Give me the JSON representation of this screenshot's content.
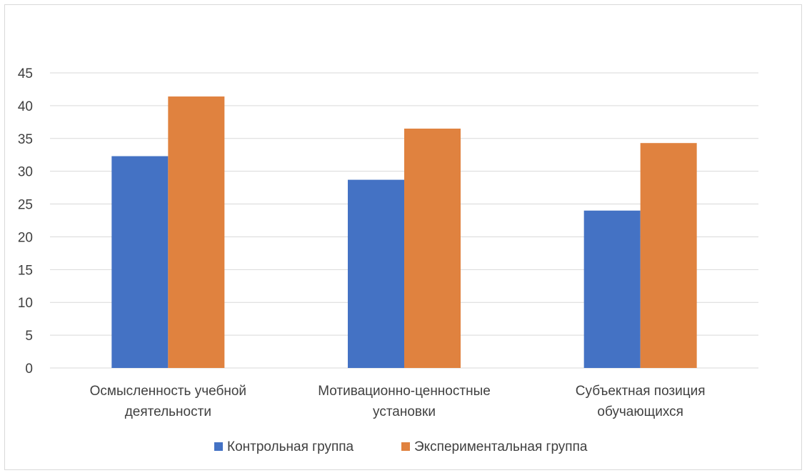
{
  "chart_data": {
    "type": "bar",
    "title": "",
    "xlabel": "",
    "ylabel": "",
    "categories": [
      [
        "Осмысленность учебной",
        "деятельности"
      ],
      [
        "Мотивационно-ценностные",
        "установки"
      ],
      [
        "Субъектная позиция",
        "обучающихся"
      ]
    ],
    "series": [
      {
        "name": "Контрольная группа",
        "color": "#4472c4",
        "values": [
          32.3,
          28.7,
          24.0
        ]
      },
      {
        "name": "Экспериментальная группа",
        "color": "#e0823f",
        "values": [
          41.4,
          36.5,
          34.3
        ]
      }
    ],
    "ylim": [
      0,
      45
    ],
    "yticks": [
      0,
      5,
      10,
      15,
      20,
      25,
      30,
      35,
      40,
      45
    ],
    "grid": true,
    "legend_position": "bottom"
  }
}
